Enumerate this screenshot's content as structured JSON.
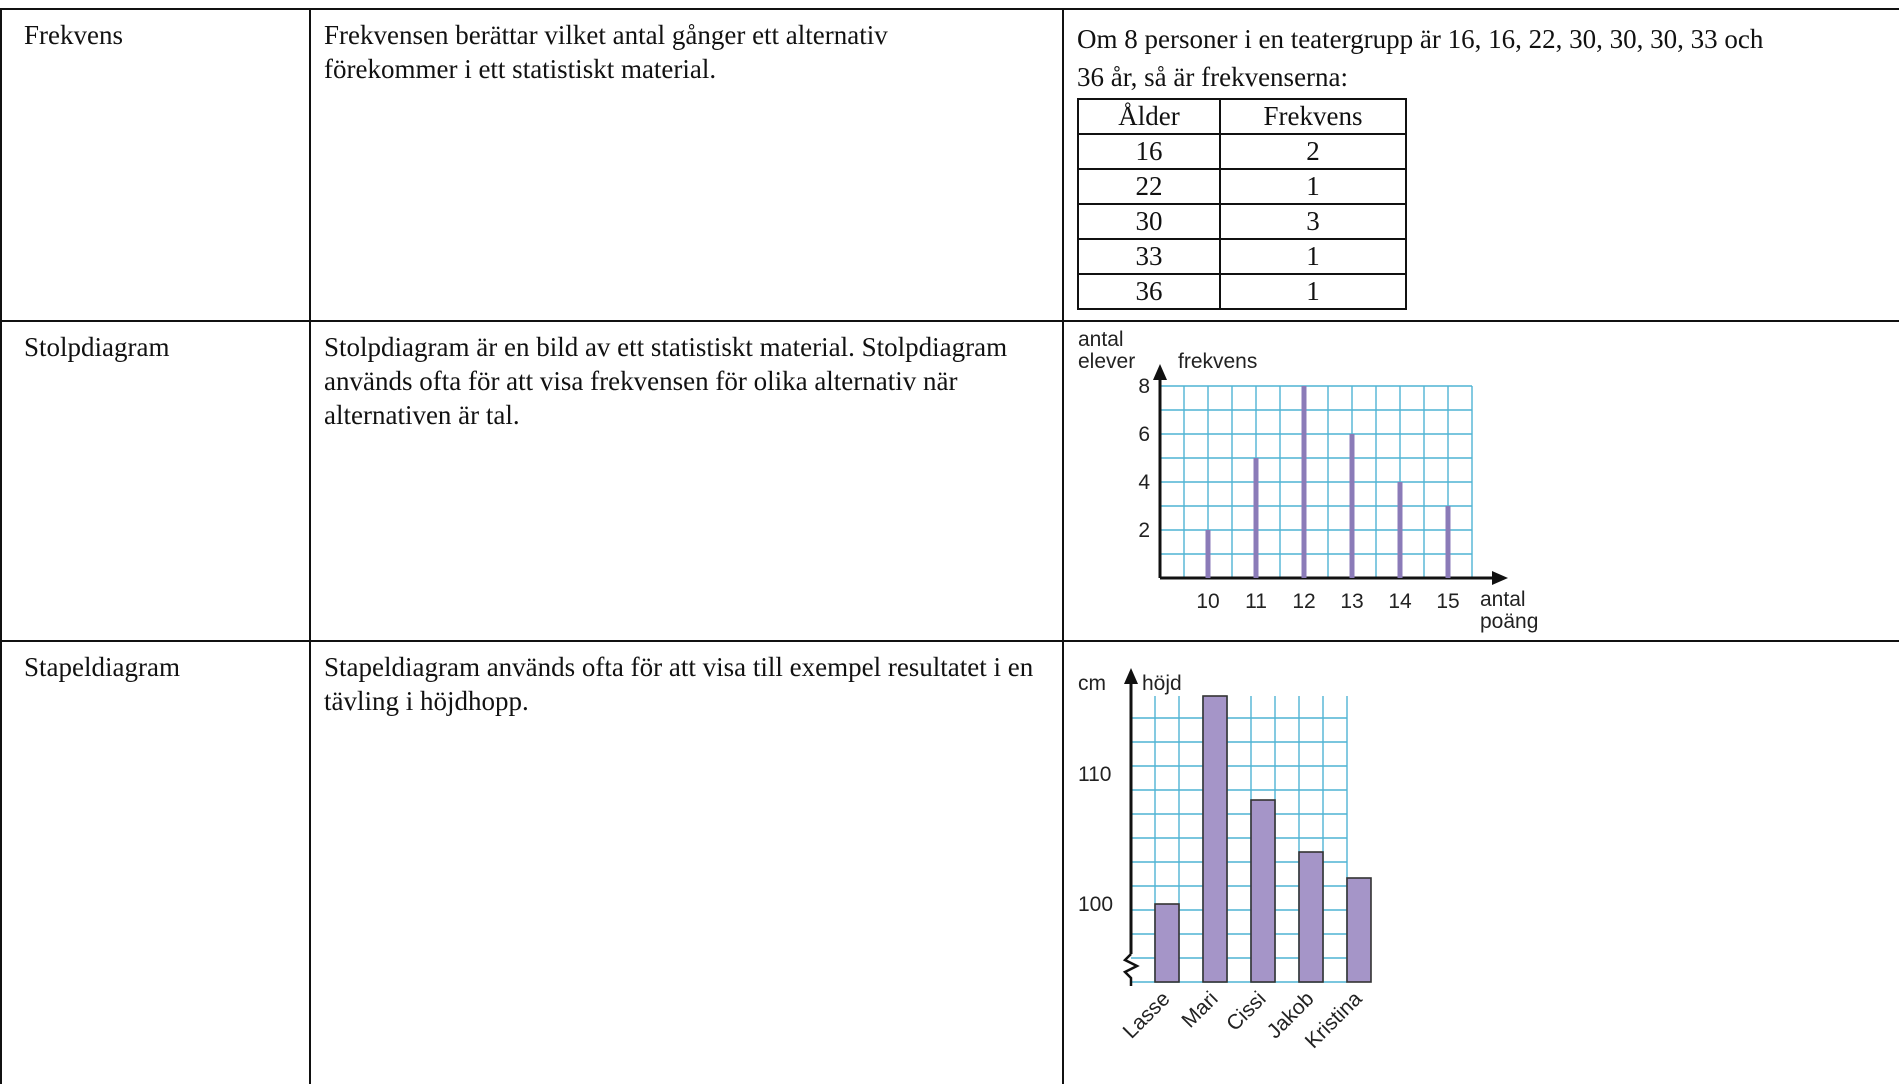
{
  "rows": [
    {
      "term": "Frekvens",
      "description": "Frekvensen berättar vilket antal gånger ett alternativ förekommer i ett statistiskt material.",
      "example_text_line1": "Om 8 personer i en teatergrupp är 16, 16, 22, 30, 30, 30, 33 och",
      "example_text_line2": "36 år, så är frekvenserna:",
      "table_headers": [
        "Ålder",
        "Frekvens"
      ],
      "table_rows": [
        [
          "16",
          "2"
        ],
        [
          "22",
          "1"
        ],
        [
          "30",
          "3"
        ],
        [
          "33",
          "1"
        ],
        [
          "36",
          "1"
        ]
      ]
    },
    {
      "term": "Stolpdiagram",
      "description": "Stolpdiagram är en bild av ett statistiskt material. Stolpdiagram används ofta för att visa frekvensen för olika alternativ när alternativen är tal."
    },
    {
      "term": "Stapeldiagram",
      "description": "Stapeldiagram används ofta för att visa till exempel resultatet i en tävling i höjdhopp."
    }
  ],
  "chart_data": [
    {
      "type": "bar",
      "style": "stick",
      "ylabel_top": "antal",
      "ylabel_bottom": "elever",
      "ylabel_extra": "frekvens",
      "xlabel_line1": "antal",
      "xlabel_line2": "poäng",
      "categories": [
        "10",
        "11",
        "12",
        "13",
        "14",
        "15"
      ],
      "values": [
        2,
        5,
        8,
        6,
        4,
        3
      ],
      "yticks": [
        "2",
        "4",
        "6",
        "8"
      ],
      "ylim": [
        0,
        8
      ],
      "grid": true,
      "bar_color": "#8b7bb8",
      "grid_color": "#4fb4d4"
    },
    {
      "type": "bar",
      "ylabel_unit": "cm",
      "ylabel": "höjd",
      "categories": [
        "Lasse",
        "Mari",
        "Cissi",
        "Jakob",
        "Kristina"
      ],
      "values": [
        100,
        116,
        108,
        104,
        102
      ],
      "yticks": [
        "100",
        "110"
      ],
      "ylim": [
        94,
        116
      ],
      "grid": true,
      "axis_break": true,
      "bar_color": "#a595c8",
      "grid_color": "#4fb4d4"
    }
  ]
}
